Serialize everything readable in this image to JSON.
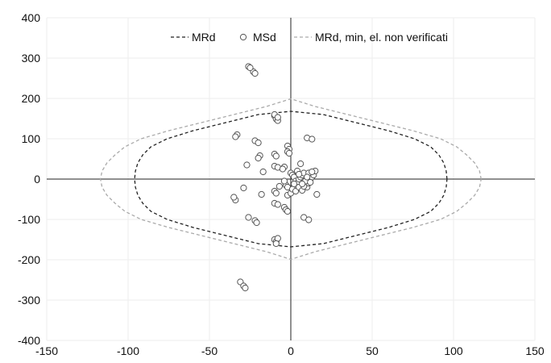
{
  "chart_data": {
    "type": "scatter",
    "title": "",
    "xlabel": "",
    "ylabel": "",
    "xlim": [
      -150,
      150
    ],
    "ylim": [
      -400,
      400
    ],
    "x_ticks": [
      "-150",
      "-100",
      "-50",
      "0",
      "50",
      "100",
      "150"
    ],
    "y_ticks": [
      "400",
      "300",
      "200",
      "100",
      "0",
      "-100",
      "-200",
      "-300",
      "-400"
    ],
    "grid": true,
    "legend_placement": "top",
    "colors": {
      "mrd": "#222222",
      "msd_edge": "#555555",
      "mrd_min": "#aaaaaa",
      "grid": "#ededed",
      "axis": "#222222"
    },
    "legend": [
      {
        "key": "mrd",
        "label": "MRd"
      },
      {
        "key": "msd",
        "label": "MSd"
      },
      {
        "key": "mrd_min",
        "label": "MRd, min, el. non verificati"
      }
    ],
    "series": [
      {
        "name": "MRd",
        "style": "dashed-line",
        "points": [
          [
            96,
            0
          ],
          [
            95.5,
            20
          ],
          [
            94,
            40
          ],
          [
            91,
            60
          ],
          [
            86,
            80
          ],
          [
            76,
            100
          ],
          [
            60,
            120
          ],
          [
            40,
            140
          ],
          [
            20,
            160
          ],
          [
            0,
            168
          ],
          [
            -20,
            160
          ],
          [
            -40,
            140
          ],
          [
            -60,
            120
          ],
          [
            -76,
            100
          ],
          [
            -86,
            80
          ],
          [
            -91,
            60
          ],
          [
            -94,
            40
          ],
          [
            -95.5,
            20
          ],
          [
            -96,
            0
          ],
          [
            -95.5,
            -20
          ],
          [
            -94,
            -40
          ],
          [
            -91,
            -60
          ],
          [
            -86,
            -80
          ],
          [
            -76,
            -100
          ],
          [
            -60,
            -120
          ],
          [
            -40,
            -140
          ],
          [
            -20,
            -160
          ],
          [
            0,
            -168
          ],
          [
            20,
            -160
          ],
          [
            40,
            -140
          ],
          [
            60,
            -120
          ],
          [
            76,
            -100
          ],
          [
            86,
            -80
          ],
          [
            91,
            -60
          ],
          [
            94,
            -40
          ],
          [
            95.5,
            -20
          ],
          [
            96,
            0
          ]
        ]
      },
      {
        "name": "MRd, min, el. non verificati",
        "style": "dashed-line",
        "points": [
          [
            117,
            0
          ],
          [
            116,
            20
          ],
          [
            113,
            40
          ],
          [
            108,
            60
          ],
          [
            102,
            80
          ],
          [
            92,
            100
          ],
          [
            75,
            120
          ],
          [
            55,
            140
          ],
          [
            30,
            165
          ],
          [
            15,
            180
          ],
          [
            0,
            199
          ],
          [
            -15,
            180
          ],
          [
            -30,
            165
          ],
          [
            -55,
            140
          ],
          [
            -75,
            120
          ],
          [
            -92,
            100
          ],
          [
            -102,
            80
          ],
          [
            -108,
            60
          ],
          [
            -113,
            40
          ],
          [
            -116,
            20
          ],
          [
            -117,
            0
          ],
          [
            -116,
            -20
          ],
          [
            -113,
            -40
          ],
          [
            -108,
            -60
          ],
          [
            -102,
            -80
          ],
          [
            -92,
            -100
          ],
          [
            -75,
            -120
          ],
          [
            -55,
            -140
          ],
          [
            -30,
            -165
          ],
          [
            -15,
            -180
          ],
          [
            0,
            -199
          ],
          [
            15,
            -180
          ],
          [
            30,
            -165
          ],
          [
            55,
            -140
          ],
          [
            75,
            -120
          ],
          [
            92,
            -100
          ],
          [
            102,
            -80
          ],
          [
            108,
            -60
          ],
          [
            113,
            -40
          ],
          [
            116,
            -20
          ],
          [
            117,
            0
          ]
        ]
      },
      {
        "name": "MSd",
        "style": "markers",
        "points": [
          [
            -26,
            279
          ],
          [
            -23,
            266
          ],
          [
            -25,
            276
          ],
          [
            -22,
            262
          ],
          [
            -10,
            157
          ],
          [
            -9,
            149
          ],
          [
            -8,
            145
          ],
          [
            -10,
            160
          ],
          [
            -8,
            153
          ],
          [
            -33,
            110
          ],
          [
            -34,
            105
          ],
          [
            -22,
            95
          ],
          [
            -20,
            90
          ],
          [
            -19,
            58
          ],
          [
            -20,
            52
          ],
          [
            -27,
            35
          ],
          [
            -17,
            18
          ],
          [
            -10,
            62
          ],
          [
            -9,
            57
          ],
          [
            -10,
            32
          ],
          [
            -8,
            29
          ],
          [
            -2,
            82
          ],
          [
            -1,
            74
          ],
          [
            -2,
            68
          ],
          [
            -1,
            64
          ],
          [
            10,
            102
          ],
          [
            13,
            99
          ],
          [
            -4,
            30
          ],
          [
            -5,
            25
          ],
          [
            -3,
            -15
          ],
          [
            -2,
            -20
          ],
          [
            -7,
            -18
          ],
          [
            -4,
            -5
          ],
          [
            -2,
            -40
          ],
          [
            0,
            -35
          ],
          [
            -10,
            -30
          ],
          [
            -9,
            -35
          ],
          [
            -18,
            -38
          ],
          [
            -29,
            -22
          ],
          [
            -34,
            -52
          ],
          [
            -35,
            -45
          ],
          [
            -26,
            -95
          ],
          [
            -22,
            -103
          ],
          [
            -21,
            -108
          ],
          [
            -10,
            -60
          ],
          [
            -8,
            -63
          ],
          [
            -4,
            -70
          ],
          [
            -3,
            -76
          ],
          [
            -2,
            -80
          ],
          [
            -10,
            -150
          ],
          [
            -9,
            -155
          ],
          [
            -8,
            -147
          ],
          [
            -9,
            -160
          ],
          [
            8,
            -95
          ],
          [
            11,
            -101
          ],
          [
            -31,
            -255
          ],
          [
            -29,
            -265
          ],
          [
            -28,
            -270
          ],
          [
            0,
            15
          ],
          [
            1,
            10
          ],
          [
            2,
            5
          ],
          [
            3,
            -5
          ],
          [
            4,
            -10
          ],
          [
            5,
            0
          ],
          [
            6,
            5
          ],
          [
            7,
            10
          ],
          [
            8,
            15
          ],
          [
            9,
            -15
          ],
          [
            10,
            -20
          ],
          [
            11,
            -10
          ],
          [
            12,
            0
          ],
          [
            13,
            5
          ],
          [
            14,
            10
          ],
          [
            15,
            20
          ],
          [
            16,
            -38
          ],
          [
            1,
            -25
          ],
          [
            3,
            -30
          ],
          [
            5,
            -20
          ],
          [
            7,
            -28
          ],
          [
            9,
            -5
          ],
          [
            11,
            15
          ],
          [
            6,
            38
          ],
          [
            8,
            -18
          ],
          [
            4,
            20
          ],
          [
            2,
            -12
          ],
          [
            10,
            5
          ],
          [
            12,
            -8
          ],
          [
            13,
            18
          ],
          [
            7,
            -12
          ],
          [
            5,
            12
          ]
        ]
      }
    ]
  }
}
